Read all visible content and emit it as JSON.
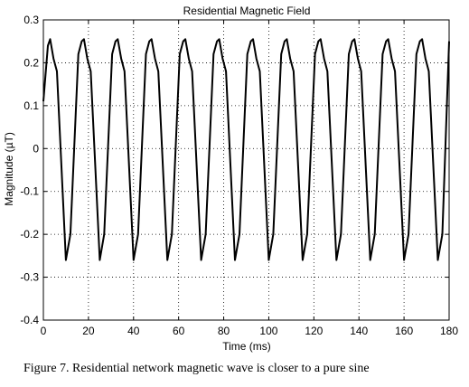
{
  "chart_data": {
    "type": "line",
    "title": "Residential Magnetic Field",
    "xlabel": "Time (ms)",
    "ylabel": "Magnitude (µT)",
    "xlim": [
      0,
      180
    ],
    "ylim": [
      -0.4,
      0.3
    ],
    "grid": true,
    "x_ticks": [
      0,
      20,
      40,
      60,
      80,
      100,
      120,
      140,
      160,
      180
    ],
    "y_ticks": [
      "0.3",
      "0.2",
      "0.1",
      "0",
      "-0.1",
      "-0.2",
      "-0.3",
      "-0.4"
    ],
    "series": [
      {
        "color": "#000000",
        "x": [
          0,
          2,
          3,
          4.5,
          6,
          10,
          12,
          15.5,
          17,
          18,
          19.5,
          21,
          25,
          27,
          30.5,
          32,
          33,
          34.5,
          36,
          40,
          42,
          45.5,
          47,
          48,
          49.5,
          51,
          55,
          57,
          60.5,
          62,
          63,
          64.5,
          66,
          70,
          72,
          75.5,
          77,
          78,
          79.5,
          81,
          85,
          87,
          90.5,
          92,
          93,
          94.5,
          96,
          100,
          102,
          105.5,
          107,
          108,
          109.5,
          111,
          115,
          117,
          120.5,
          122,
          123,
          124.5,
          126,
          130,
          132,
          135.5,
          137,
          138,
          139.5,
          141,
          145,
          147,
          150.5,
          152,
          153,
          154.5,
          156,
          160,
          162,
          165.5,
          167,
          168,
          169.5,
          171,
          175,
          177,
          180
        ],
        "y": [
          0.11,
          0.24,
          0.255,
          0.21,
          0.18,
          -0.26,
          -0.2,
          0.22,
          0.25,
          0.255,
          0.21,
          0.18,
          -0.26,
          -0.2,
          0.22,
          0.25,
          0.255,
          0.21,
          0.18,
          -0.26,
          -0.2,
          0.22,
          0.25,
          0.255,
          0.21,
          0.18,
          -0.26,
          -0.2,
          0.22,
          0.25,
          0.255,
          0.21,
          0.18,
          -0.26,
          -0.2,
          0.22,
          0.25,
          0.255,
          0.21,
          0.18,
          -0.26,
          -0.2,
          0.22,
          0.25,
          0.255,
          0.21,
          0.18,
          -0.26,
          -0.2,
          0.22,
          0.25,
          0.255,
          0.21,
          0.18,
          -0.26,
          -0.2,
          0.22,
          0.25,
          0.255,
          0.21,
          0.18,
          -0.26,
          -0.2,
          0.22,
          0.25,
          0.255,
          0.21,
          0.18,
          -0.26,
          -0.2,
          0.22,
          0.25,
          0.255,
          0.21,
          0.18,
          -0.26,
          -0.2,
          0.22,
          0.25,
          0.255,
          0.21,
          0.18,
          -0.26,
          -0.2,
          0.25
        ]
      }
    ]
  },
  "caption": "Figure 7. Residential network magnetic wave is closer to a pure sine"
}
